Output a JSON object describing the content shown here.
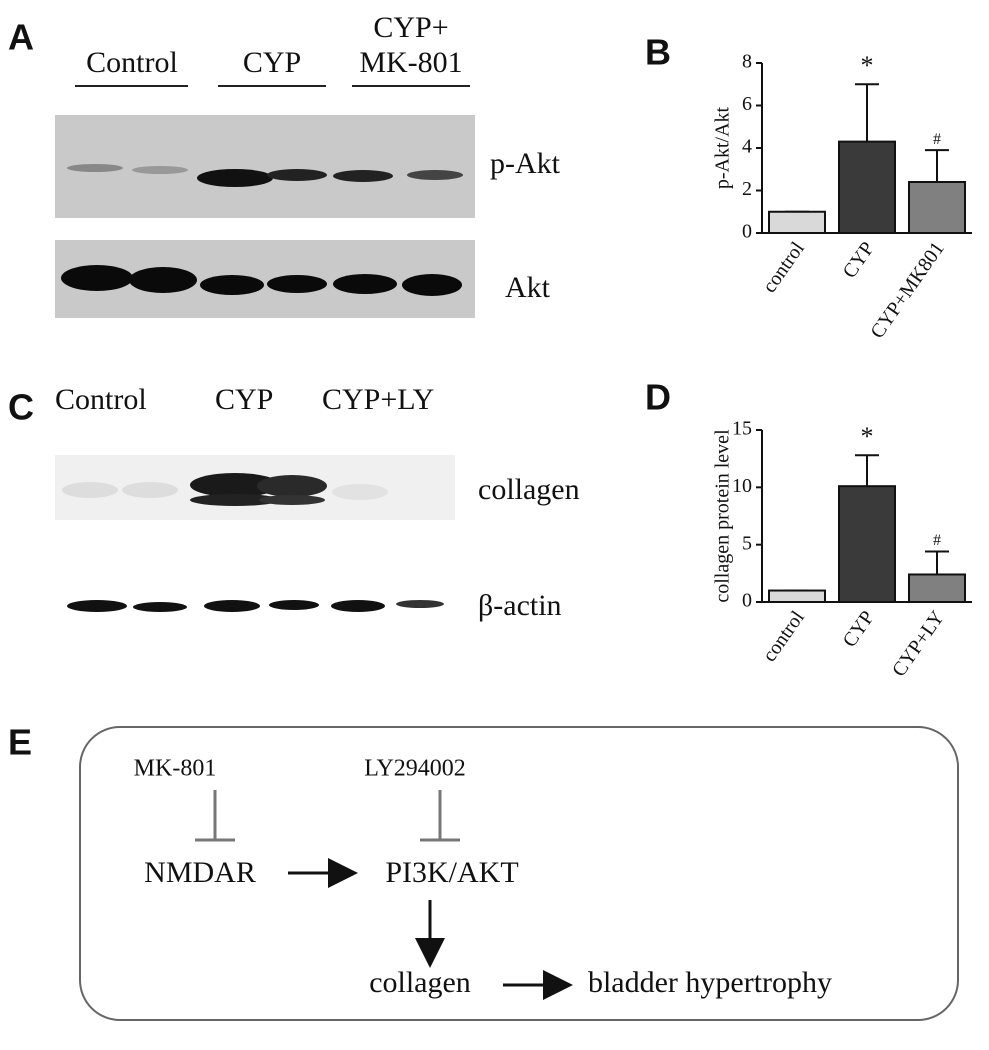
{
  "panel_labels": [
    "A",
    "B",
    "C",
    "D",
    "E"
  ],
  "blot_a": {
    "groups": [
      [
        "Control"
      ],
      [
        "CYP"
      ],
      [
        "CYP+",
        "MK-801"
      ]
    ],
    "bands": [
      "p-Akt",
      "Akt"
    ]
  },
  "blot_c": {
    "groups": [
      "Control",
      "CYP",
      "CYP+LY"
    ],
    "bands": [
      "collagen",
      "β-actin"
    ]
  },
  "chart_data": [
    {
      "type": "bar",
      "ylabel": "p-Akt/Akt",
      "categories": [
        "control",
        "CYP",
        "CYP+MK801"
      ],
      "values": [
        1,
        4.3,
        2.4
      ],
      "errors": [
        0,
        2.7,
        1.5
      ],
      "annotations": [
        null,
        "*",
        "#"
      ],
      "colors": [
        "#d9d9d9",
        "#3a3a3a",
        "#808080"
      ],
      "ylim": [
        0,
        8
      ],
      "yticks": [
        0,
        2,
        4,
        6,
        8
      ]
    },
    {
      "type": "bar",
      "ylabel": "collagen protein level",
      "categories": [
        "control",
        "CYP",
        "CYP+LY"
      ],
      "values": [
        1,
        10.1,
        2.4
      ],
      "errors": [
        0,
        2.7,
        2.0
      ],
      "annotations": [
        null,
        "*",
        "#"
      ],
      "colors": [
        "#d9d9d9",
        "#3a3a3a",
        "#808080"
      ],
      "ylim": [
        0,
        15
      ],
      "yticks": [
        0,
        5,
        10,
        15
      ]
    }
  ],
  "diagram": {
    "inhibitors": [
      "MK-801",
      "LY294002"
    ],
    "nodes": [
      "NMDAR",
      "PI3K/AKT",
      "collagen",
      "bladder hypertrophy"
    ]
  }
}
